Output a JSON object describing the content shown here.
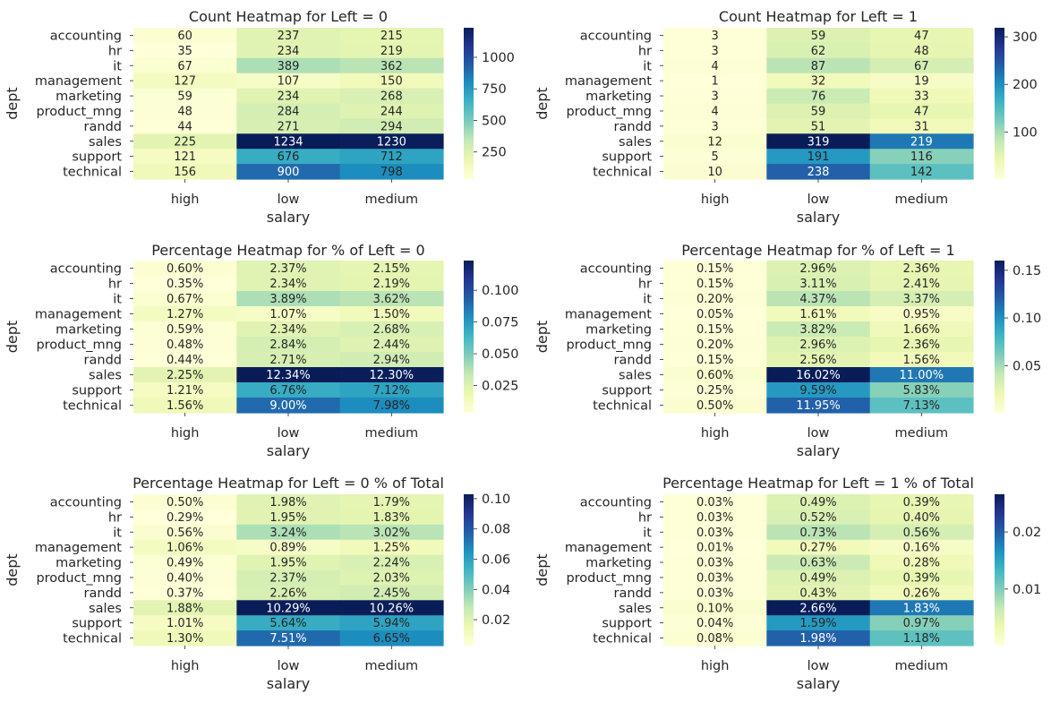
{
  "chart_data": [
    {
      "type": "heatmap",
      "title": "Count Heatmap for Left = 0",
      "xlabel": "salary",
      "ylabel": "dept",
      "x_categories": [
        "high",
        "low",
        "medium"
      ],
      "y_categories": [
        "accounting",
        "hr",
        "it",
        "management",
        "marketing",
        "product_mng",
        "randd",
        "sales",
        "support",
        "technical"
      ],
      "values": [
        [
          60,
          237,
          215
        ],
        [
          35,
          234,
          219
        ],
        [
          67,
          389,
          362
        ],
        [
          127,
          107,
          150
        ],
        [
          59,
          234,
          268
        ],
        [
          48,
          284,
          244
        ],
        [
          44,
          271,
          294
        ],
        [
          225,
          1234,
          1230
        ],
        [
          121,
          676,
          712
        ],
        [
          156,
          900,
          798
        ]
      ],
      "annotations": [
        [
          "60",
          "237",
          "215"
        ],
        [
          "35",
          "234",
          "219"
        ],
        [
          "67",
          "389",
          "362"
        ],
        [
          "127",
          "107",
          "150"
        ],
        [
          "59",
          "234",
          "268"
        ],
        [
          "48",
          "284",
          "244"
        ],
        [
          "44",
          "271",
          "294"
        ],
        [
          "225",
          "1234",
          "1230"
        ],
        [
          "121",
          "676",
          "712"
        ],
        [
          "156",
          "900",
          "798"
        ]
      ],
      "colormap": "YlGnBu",
      "vmin": 35,
      "vmax": 1234,
      "colorbar_ticks": [
        250,
        500,
        750,
        1000
      ],
      "colorbar_tick_labels": [
        "250",
        "500",
        "750",
        "1000"
      ]
    },
    {
      "type": "heatmap",
      "title": "Count Heatmap for Left = 1",
      "xlabel": "salary",
      "ylabel": "dept",
      "x_categories": [
        "high",
        "low",
        "medium"
      ],
      "y_categories": [
        "accounting",
        "hr",
        "it",
        "management",
        "marketing",
        "product_mng",
        "randd",
        "sales",
        "support",
        "technical"
      ],
      "values": [
        [
          3,
          59,
          47
        ],
        [
          3,
          62,
          48
        ],
        [
          4,
          87,
          67
        ],
        [
          1,
          32,
          19
        ],
        [
          3,
          76,
          33
        ],
        [
          4,
          59,
          47
        ],
        [
          3,
          51,
          31
        ],
        [
          12,
          319,
          219
        ],
        [
          5,
          191,
          116
        ],
        [
          10,
          238,
          142
        ]
      ],
      "annotations": [
        [
          "3",
          "59",
          "47"
        ],
        [
          "3",
          "62",
          "48"
        ],
        [
          "4",
          "87",
          "67"
        ],
        [
          "1",
          "32",
          "19"
        ],
        [
          "3",
          "76",
          "33"
        ],
        [
          "4",
          "59",
          "47"
        ],
        [
          "3",
          "51",
          "31"
        ],
        [
          "12",
          "319",
          "219"
        ],
        [
          "5",
          "191",
          "116"
        ],
        [
          "10",
          "238",
          "142"
        ]
      ],
      "colormap": "YlGnBu",
      "vmin": 1,
      "vmax": 319,
      "colorbar_ticks": [
        100,
        200,
        300
      ],
      "colorbar_tick_labels": [
        "100",
        "200",
        "300"
      ]
    },
    {
      "type": "heatmap",
      "title": "Percentage Heatmap for % of Left = 0",
      "xlabel": "salary",
      "ylabel": "dept",
      "x_categories": [
        "high",
        "low",
        "medium"
      ],
      "y_categories": [
        "accounting",
        "hr",
        "it",
        "management",
        "marketing",
        "product_mng",
        "randd",
        "sales",
        "support",
        "technical"
      ],
      "values": [
        [
          0.006,
          0.0237,
          0.0215
        ],
        [
          0.0035,
          0.0234,
          0.0219
        ],
        [
          0.0067,
          0.0389,
          0.0362
        ],
        [
          0.0127,
          0.0107,
          0.015
        ],
        [
          0.0059,
          0.0234,
          0.0268
        ],
        [
          0.0048,
          0.0284,
          0.0244
        ],
        [
          0.0044,
          0.0271,
          0.0294
        ],
        [
          0.0225,
          0.1234,
          0.123
        ],
        [
          0.0121,
          0.0676,
          0.0712
        ],
        [
          0.0156,
          0.09,
          0.0798
        ]
      ],
      "annotations": [
        [
          "0.60%",
          "2.37%",
          "2.15%"
        ],
        [
          "0.35%",
          "2.34%",
          "2.19%"
        ],
        [
          "0.67%",
          "3.89%",
          "3.62%"
        ],
        [
          "1.27%",
          "1.07%",
          "1.50%"
        ],
        [
          "0.59%",
          "2.34%",
          "2.68%"
        ],
        [
          "0.48%",
          "2.84%",
          "2.44%"
        ],
        [
          "0.44%",
          "2.71%",
          "2.94%"
        ],
        [
          "2.25%",
          "12.34%",
          "12.30%"
        ],
        [
          "1.21%",
          "6.76%",
          "7.12%"
        ],
        [
          "1.56%",
          "9.00%",
          "7.98%"
        ]
      ],
      "colormap": "YlGnBu",
      "vmin": 0.0035,
      "vmax": 0.1234,
      "colorbar_ticks": [
        0.025,
        0.05,
        0.075,
        0.1
      ],
      "colorbar_tick_labels": [
        "0.025",
        "0.050",
        "0.075",
        "0.100"
      ]
    },
    {
      "type": "heatmap",
      "title": "Percentage Heatmap for % of Left = 1",
      "xlabel": "salary",
      "ylabel": "dept",
      "x_categories": [
        "high",
        "low",
        "medium"
      ],
      "y_categories": [
        "accounting",
        "hr",
        "it",
        "management",
        "marketing",
        "product_mng",
        "randd",
        "sales",
        "support",
        "technical"
      ],
      "values": [
        [
          0.0015,
          0.0296,
          0.0236
        ],
        [
          0.0015,
          0.0311,
          0.0241
        ],
        [
          0.002,
          0.0437,
          0.0337
        ],
        [
          0.0005,
          0.0161,
          0.0095
        ],
        [
          0.0015,
          0.0382,
          0.0166
        ],
        [
          0.002,
          0.0296,
          0.0236
        ],
        [
          0.0015,
          0.0256,
          0.0156
        ],
        [
          0.006,
          0.1602,
          0.11
        ],
        [
          0.0025,
          0.0959,
          0.0583
        ],
        [
          0.005,
          0.1195,
          0.0713
        ]
      ],
      "annotations": [
        [
          "0.15%",
          "2.96%",
          "2.36%"
        ],
        [
          "0.15%",
          "3.11%",
          "2.41%"
        ],
        [
          "0.20%",
          "4.37%",
          "3.37%"
        ],
        [
          "0.05%",
          "1.61%",
          "0.95%"
        ],
        [
          "0.15%",
          "3.82%",
          "1.66%"
        ],
        [
          "0.20%",
          "2.96%",
          "2.36%"
        ],
        [
          "0.15%",
          "2.56%",
          "1.56%"
        ],
        [
          "0.60%",
          "16.02%",
          "11.00%"
        ],
        [
          "0.25%",
          "9.59%",
          "5.83%"
        ],
        [
          "0.50%",
          "11.95%",
          "7.13%"
        ]
      ],
      "colormap": "YlGnBu",
      "vmin": 0.0005,
      "vmax": 0.1602,
      "colorbar_ticks": [
        0.05,
        0.1,
        0.15
      ],
      "colorbar_tick_labels": [
        "0.05",
        "0.10",
        "0.15"
      ]
    },
    {
      "type": "heatmap",
      "title": "Percentage Heatmap for Left = 0 % of Total",
      "xlabel": "salary",
      "ylabel": "dept",
      "x_categories": [
        "high",
        "low",
        "medium"
      ],
      "y_categories": [
        "accounting",
        "hr",
        "it",
        "management",
        "marketing",
        "product_mng",
        "randd",
        "sales",
        "support",
        "technical"
      ],
      "values": [
        [
          0.005,
          0.0198,
          0.0179
        ],
        [
          0.0029,
          0.0195,
          0.0183
        ],
        [
          0.0056,
          0.0324,
          0.0302
        ],
        [
          0.0106,
          0.0089,
          0.0125
        ],
        [
          0.0049,
          0.0195,
          0.0224
        ],
        [
          0.004,
          0.0237,
          0.0203
        ],
        [
          0.0037,
          0.0226,
          0.0245
        ],
        [
          0.0188,
          0.1029,
          0.1026
        ],
        [
          0.0101,
          0.0564,
          0.0594
        ],
        [
          0.013,
          0.0751,
          0.0665
        ]
      ],
      "annotations": [
        [
          "0.50%",
          "1.98%",
          "1.79%"
        ],
        [
          "0.29%",
          "1.95%",
          "1.83%"
        ],
        [
          "0.56%",
          "3.24%",
          "3.02%"
        ],
        [
          "1.06%",
          "0.89%",
          "1.25%"
        ],
        [
          "0.49%",
          "1.95%",
          "2.24%"
        ],
        [
          "0.40%",
          "2.37%",
          "2.03%"
        ],
        [
          "0.37%",
          "2.26%",
          "2.45%"
        ],
        [
          "1.88%",
          "10.29%",
          "10.26%"
        ],
        [
          "1.01%",
          "5.64%",
          "5.94%"
        ],
        [
          "1.30%",
          "7.51%",
          "6.65%"
        ]
      ],
      "colormap": "YlGnBu",
      "vmin": 0.0029,
      "vmax": 0.1029,
      "colorbar_ticks": [
        0.02,
        0.04,
        0.06,
        0.08,
        0.1
      ],
      "colorbar_tick_labels": [
        "0.02",
        "0.04",
        "0.06",
        "0.08",
        "0.10"
      ]
    },
    {
      "type": "heatmap",
      "title": "Percentage Heatmap for Left = 1 % of Total",
      "xlabel": "salary",
      "ylabel": "dept",
      "x_categories": [
        "high",
        "low",
        "medium"
      ],
      "y_categories": [
        "accounting",
        "hr",
        "it",
        "management",
        "marketing",
        "product_mng",
        "randd",
        "sales",
        "support",
        "technical"
      ],
      "values": [
        [
          0.0003,
          0.0049,
          0.0039
        ],
        [
          0.0003,
          0.0052,
          0.004
        ],
        [
          0.0003,
          0.0073,
          0.0056
        ],
        [
          0.0001,
          0.0027,
          0.0016
        ],
        [
          0.0003,
          0.0063,
          0.0028
        ],
        [
          0.0003,
          0.0049,
          0.0039
        ],
        [
          0.0003,
          0.0043,
          0.0026
        ],
        [
          0.001,
          0.0266,
          0.0183
        ],
        [
          0.0004,
          0.0159,
          0.0097
        ],
        [
          0.0008,
          0.0198,
          0.0118
        ]
      ],
      "annotations": [
        [
          "0.03%",
          "0.49%",
          "0.39%"
        ],
        [
          "0.03%",
          "0.52%",
          "0.40%"
        ],
        [
          "0.03%",
          "0.73%",
          "0.56%"
        ],
        [
          "0.01%",
          "0.27%",
          "0.16%"
        ],
        [
          "0.03%",
          "0.63%",
          "0.28%"
        ],
        [
          "0.03%",
          "0.49%",
          "0.39%"
        ],
        [
          "0.03%",
          "0.43%",
          "0.26%"
        ],
        [
          "0.10%",
          "2.66%",
          "1.83%"
        ],
        [
          "0.04%",
          "1.59%",
          "0.97%"
        ],
        [
          "0.08%",
          "1.98%",
          "1.18%"
        ]
      ],
      "colormap": "YlGnBu",
      "vmin": 0.0001,
      "vmax": 0.0266,
      "colorbar_ticks": [
        0.01,
        0.02
      ],
      "colorbar_tick_labels": [
        "0.01",
        "0.02"
      ]
    }
  ]
}
